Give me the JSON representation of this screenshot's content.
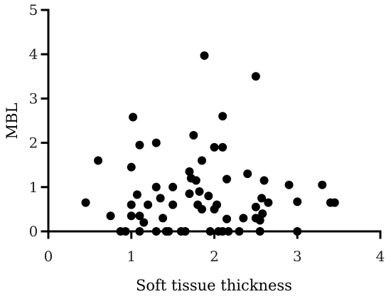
{
  "chart_data": {
    "type": "scatter",
    "title": "",
    "xlabel": "Soft tissue thickness",
    "ylabel": "MBL",
    "xlim": [
      0,
      4
    ],
    "ylim": [
      0,
      5
    ],
    "x_ticks": [
      "0",
      "1",
      "2",
      "3",
      "4"
    ],
    "y_ticks": [
      "0",
      "1",
      "2",
      "3",
      "4",
      "5"
    ],
    "grid": false,
    "legend": "none",
    "point_color": "#000000",
    "series": [
      {
        "points": [
          [
            0.45,
            0.65
          ],
          [
            0.6,
            1.6
          ],
          [
            0.75,
            0.35
          ],
          [
            0.87,
            0.0
          ],
          [
            0.93,
            0.0
          ],
          [
            1.0,
            1.45
          ],
          [
            1.02,
            2.58
          ],
          [
            1.0,
            0.35
          ],
          [
            1.0,
            0.6
          ],
          [
            1.07,
            0.83
          ],
          [
            1.1,
            1.95
          ],
          [
            1.1,
            0.35
          ],
          [
            1.1,
            0.0
          ],
          [
            1.15,
            0.2
          ],
          [
            1.2,
            0.6
          ],
          [
            1.3,
            2.0
          ],
          [
            1.3,
            1.0
          ],
          [
            1.3,
            0.0
          ],
          [
            1.35,
            0.75
          ],
          [
            1.38,
            0.3
          ],
          [
            1.42,
            0.0
          ],
          [
            1.45,
            0.0
          ],
          [
            1.5,
            1.0
          ],
          [
            1.5,
            0.6
          ],
          [
            1.6,
            0.0
          ],
          [
            1.65,
            0.0
          ],
          [
            1.7,
            1.35
          ],
          [
            1.7,
            0.85
          ],
          [
            1.72,
            1.2
          ],
          [
            1.75,
            2.17
          ],
          [
            1.78,
            1.15
          ],
          [
            1.8,
            0.6
          ],
          [
            1.82,
            0.9
          ],
          [
            1.85,
            1.6
          ],
          [
            1.88,
            3.97
          ],
          [
            1.85,
            0.5
          ],
          [
            1.93,
            0.8
          ],
          [
            1.95,
            0.0
          ],
          [
            2.0,
            1.9
          ],
          [
            2.0,
            0.5
          ],
          [
            2.03,
            0.6
          ],
          [
            2.05,
            0.0
          ],
          [
            2.1,
            2.6
          ],
          [
            2.1,
            1.9
          ],
          [
            2.1,
            0.0
          ],
          [
            2.15,
            1.18
          ],
          [
            2.15,
            0.28
          ],
          [
            2.17,
            0.0
          ],
          [
            2.3,
            0.0
          ],
          [
            2.35,
            0.3
          ],
          [
            2.4,
            1.3
          ],
          [
            2.5,
            3.5
          ],
          [
            2.5,
            0.55
          ],
          [
            2.5,
            0.3
          ],
          [
            2.55,
            0.0
          ],
          [
            2.55,
            0.25
          ],
          [
            2.57,
            0.75
          ],
          [
            2.58,
            0.4
          ],
          [
            2.6,
            1.15
          ],
          [
            2.65,
            0.65
          ],
          [
            2.9,
            1.05
          ],
          [
            3.0,
            0.67
          ],
          [
            3.0,
            0.0
          ],
          [
            3.3,
            1.05
          ],
          [
            3.4,
            0.65
          ],
          [
            3.45,
            0.65
          ]
        ]
      }
    ]
  }
}
